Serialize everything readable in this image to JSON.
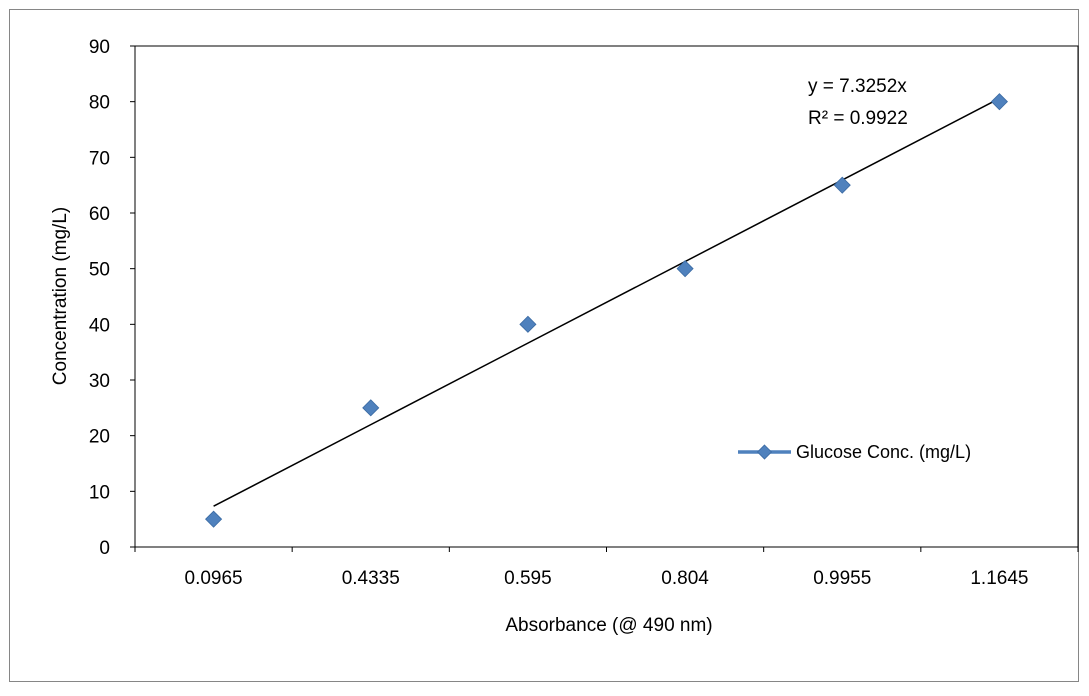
{
  "chart_data": {
    "type": "scatter",
    "xlabel": "Absorbance (@ 490 nm)",
    "ylabel": "Concentration (mg/L)",
    "x_axis_kind": "category",
    "categories": [
      "0.0965",
      "0.4335",
      "0.595",
      "0.804",
      "0.9955",
      "1.1645"
    ],
    "ylim": [
      0,
      90
    ],
    "yticks": [
      0,
      10,
      20,
      30,
      40,
      50,
      60,
      70,
      80,
      90
    ],
    "grid": false,
    "series": [
      {
        "name": "Glucose Conc. (mg/L)",
        "x": [
          "0.0965",
          "0.4335",
          "0.595",
          "0.804",
          "0.9955",
          "1.1645"
        ],
        "y": [
          5,
          25,
          40,
          50,
          65,
          80
        ],
        "marker": "diamond",
        "color": "#4f81bd"
      }
    ],
    "trendline": {
      "type": "linear",
      "equation": "y = 7.3252x",
      "r_squared": "R² = 0.9922",
      "color": "#000000",
      "start_y": 7.3252,
      "end_y": 80.5772
    },
    "legend": {
      "position": "right-inside",
      "entries": [
        "Glucose Conc. (mg/L)"
      ]
    }
  }
}
